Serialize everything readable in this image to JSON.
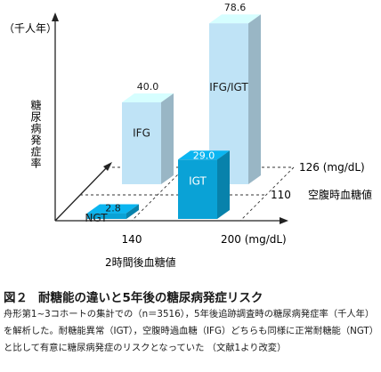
{
  "chart_data": {
    "type": "bar",
    "subtype": "3d-bar-grid",
    "unit_label": "（千人年）",
    "ylabel": "糖尿病発症率",
    "xlabel": "2時間後血糖値",
    "zlabel": "空腹時血糖値",
    "x_ticks": [
      "140",
      "200 (mg/dL)"
    ],
    "z_ticks": [
      "110",
      "126 (mg/dL)"
    ],
    "ylim": [
      0,
      80
    ],
    "bars": [
      {
        "category": "NGT",
        "value": 2.8,
        "value_label": "2.8",
        "row": 0,
        "col": 0,
        "color": "#0aa2d6"
      },
      {
        "category": "IGT",
        "value": 29.0,
        "value_label": "29.0",
        "row": 0,
        "col": 1,
        "color": "#0aa2d6"
      },
      {
        "category": "IFG",
        "value": 40.0,
        "value_label": "40.0",
        "row": 1,
        "col": 0,
        "color": "#bfe3f6"
      },
      {
        "category": "IFG/IGT",
        "value": 78.6,
        "value_label": "78.6",
        "row": 1,
        "col": 1,
        "color": "#bfe3f6"
      }
    ]
  },
  "caption": {
    "figure_number": "図２",
    "title": "耐糖能の違いと5年後の糖尿病発症リスク",
    "description": "舟形第1∼3コホートの集計での（n＝3516），5年後追跡調査時の糖尿病発症率（千人年）を解析した。耐糖能異常（IGT），空腹時過血糖（IFG）どちらも同様に正常耐糖能（NGT）と比して有意に糖尿病発症のリスクとなっていた （文献1より改変）"
  }
}
